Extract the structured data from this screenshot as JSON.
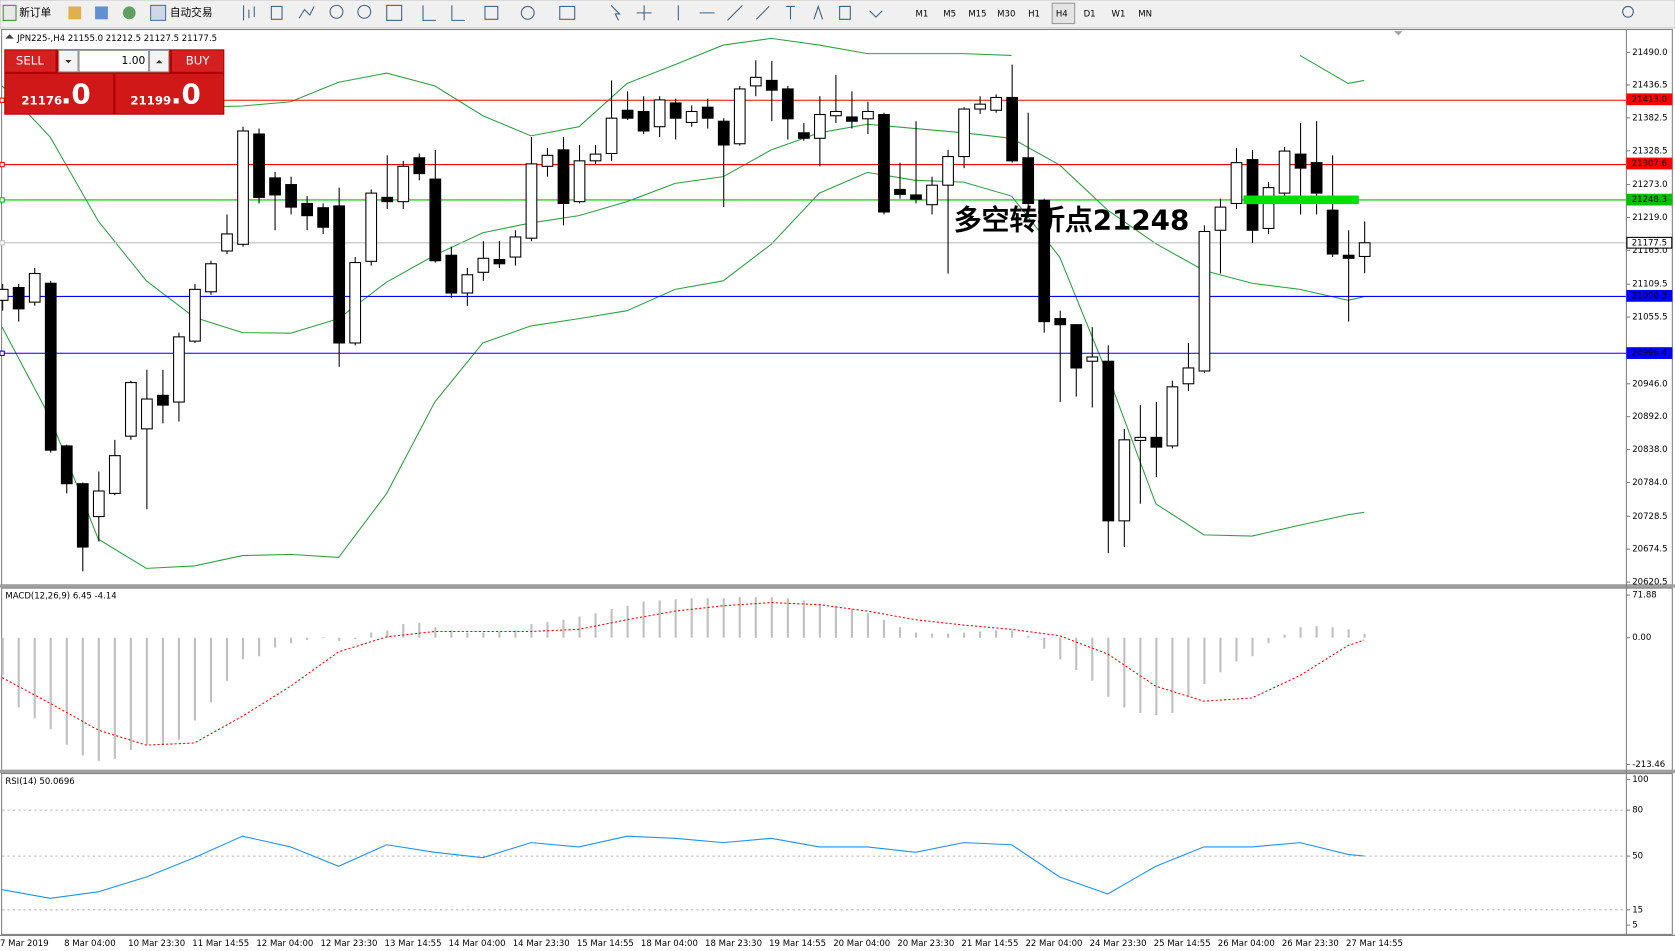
{
  "toolbar": {
    "new_order": "新订单",
    "auto_trading": "自动交易",
    "timeframes": [
      "M1",
      "M5",
      "M15",
      "M30",
      "H1",
      "H4",
      "D1",
      "W1",
      "MN"
    ]
  },
  "trade_panel": {
    "sell": "SELL",
    "buy": "BUY",
    "volume": "1.00",
    "bid": {
      "main": "21176",
      "pips": ".0"
    },
    "ask": {
      "main": "21199",
      "pips": ".0"
    }
  },
  "chart_data": [
    {
      "type": "candlestick",
      "title": "JPN225-,H4  21155.0 21212.5 21127.5 21177.5",
      "categories": [
        "7 Mar 2019",
        null,
        null,
        null,
        "8 Mar 04:00",
        null,
        null,
        null,
        "10 Mar 23:30",
        null,
        null,
        null,
        "11 Mar 14:55",
        null,
        null,
        null,
        "12 Mar 04:00",
        null,
        null,
        null,
        "12 Mar 23:30",
        null,
        null,
        null,
        "13 Mar 14:55",
        null,
        null,
        null,
        "14 Mar 04:00",
        null,
        null,
        null,
        "14 Mar 23:30",
        null,
        null,
        null,
        "15 Mar 14:55",
        null,
        null,
        null,
        "18 Mar 04:00",
        null,
        null,
        null,
        "18 Mar 23:30",
        null,
        null,
        null,
        "19 Mar 14:55",
        null,
        null,
        null,
        "20 Mar 04:00",
        null,
        null,
        null,
        "20 Mar 23:30",
        null,
        null,
        null,
        "21 Mar 14:55",
        null,
        null,
        null,
        "22 Mar 04:00",
        null,
        null,
        null,
        "24 Mar 23:30",
        null,
        null,
        null,
        "25 Mar 14:55",
        null,
        null,
        null,
        "26 Mar 04:00",
        null,
        null,
        null,
        "26 Mar 23:30",
        null,
        null,
        null,
        "27 Mar 14:55",
        null
      ],
      "open": [
        21083,
        21104,
        21080,
        21111,
        20844,
        20782,
        20728,
        20766,
        20860,
        20872,
        20927,
        20916,
        21016,
        21097,
        21164,
        21175,
        21356,
        21284,
        21273,
        21242,
        21235,
        21238,
        21013,
        21147,
        21252,
        21245,
        21317,
        21282,
        21157,
        21095,
        21129,
        21150,
        21154,
        21185,
        21303,
        21330,
        21245,
        21312,
        21324,
        21395,
        21393,
        21368,
        21407,
        21375,
        21400,
        21377,
        21340,
        21435,
        21444,
        21430,
        21358,
        21349,
        21386,
        21384,
        21381,
        21388,
        21265,
        21256,
        21240,
        21272,
        21319,
        21397,
        21395,
        21416,
        21317,
        21247,
        21053,
        21043,
        20983,
        20983,
        20721,
        20853,
        20858,
        20844,
        20946,
        20967,
        21198,
        21242,
        21314,
        21201,
        21259,
        21323,
        21309,
        21231,
        21157,
        21155
      ],
      "high": [
        21110,
        21110,
        21136,
        21115,
        20846,
        20784,
        20802,
        20854,
        20951,
        20969,
        20969,
        21030,
        21110,
        21148,
        21224,
        21368,
        21365,
        21294,
        21286,
        21254,
        21242,
        21268,
        21154,
        21265,
        21321,
        21312,
        21324,
        21330,
        21171,
        21136,
        21180,
        21180,
        21198,
        21351,
        21333,
        21351,
        21338,
        21338,
        21444,
        21426,
        21418,
        21418,
        21414,
        21403,
        21414,
        21382,
        21435,
        21477,
        21476,
        21435,
        21374,
        21418,
        21453,
        21426,
        21409,
        21391,
        21309,
        21377,
        21286,
        21330,
        21400,
        21418,
        21421,
        21470,
        21391,
        21250,
        21066,
        21044,
        21039,
        21009,
        20872,
        20911,
        20916,
        20951,
        21013,
        21206,
        21250,
        21333,
        21330,
        21277,
        21335,
        21374,
        21377,
        21321,
        21198,
        21212.5
      ],
      "low": [
        21066,
        21048,
        21074,
        20833,
        20766,
        20638,
        20687,
        20763,
        20854,
        20740,
        20881,
        20884,
        21013,
        21092,
        21159,
        21171,
        21242,
        21198,
        21224,
        21198,
        21192,
        20974,
        21009,
        21140,
        21233,
        21233,
        21280,
        21145,
        21087,
        21074,
        21115,
        21136,
        21140,
        21180,
        21286,
        21206,
        21242,
        21307,
        21312,
        21379,
        21356,
        21351,
        21347,
        21368,
        21365,
        21236,
        21337,
        21418,
        21377,
        21347,
        21345,
        21303,
        21374,
        21365,
        21356,
        21224,
        21250,
        21242,
        21224,
        21127,
        21300,
        21389,
        21391,
        21309,
        21224,
        21030,
        20916,
        20925,
        20907,
        20668,
        20678,
        20749,
        20793,
        20840,
        20934,
        20964,
        21127,
        21233,
        21177,
        21192,
        21250,
        21224,
        21224,
        21154,
        21048,
        21127.5
      ],
      "close": [
        21101,
        21069,
        21127,
        20837,
        20782,
        20678,
        20770,
        20828,
        20948,
        20921,
        20911,
        21023,
        21101,
        21143,
        21192,
        21361,
        21252,
        21256,
        21236,
        21222,
        21203,
        21013,
        21145,
        21259,
        21245,
        21303,
        21291,
        21148,
        21095,
        21125,
        21152,
        21143,
        21187,
        21307,
        21321,
        21242,
        21312,
        21323,
        21382,
        21382,
        21361,
        21412,
        21382,
        21393,
        21382,
        21338,
        21430,
        21449,
        21428,
        21381,
        21349,
        21388,
        21393,
        21377,
        21393,
        21228,
        21257,
        21249,
        21272,
        21319,
        21397,
        21405,
        21416,
        21312,
        21242,
        21048,
        21043,
        20972,
        20990,
        20721,
        20854,
        20858,
        20842,
        20941,
        20972,
        21196,
        21236,
        21309,
        21198,
        21268,
        21328,
        21300,
        21259,
        21159,
        21152,
        21177.5
      ],
      "up_color": "#ffffff",
      "down_color": "#000000",
      "bands": {
        "color": "#2ea043",
        "x": [
          0,
          3,
          6,
          9,
          12,
          15,
          18,
          21,
          24,
          27,
          30,
          33,
          36,
          39,
          42,
          45,
          48,
          51,
          54,
          57,
          60,
          63,
          66,
          69,
          72,
          75,
          78,
          81,
          84,
          85
        ],
        "upper": [
          21409,
          21404,
          21402,
          21400,
          21400,
          21402,
          21409,
          21441,
          21456,
          21435,
          21386,
          21353,
          21368,
          21439,
          21470,
          21502,
          21513,
          21502,
          21488,
          21488,
          21488,
          21485,
          null,
          null,
          null,
          null,
          null,
          21485,
          21439,
          21444
        ],
        "middle": [
          21435,
          21351,
          21213,
          21115,
          21055,
          21030,
          21029,
          21053,
          21113,
          21157,
          21194,
          21210,
          21222,
          21245,
          21275,
          21286,
          21330,
          21358,
          21372,
          21365,
          21358,
          21349,
          21305,
          21231,
          21176,
          21132,
          21111,
          21101,
          21083,
          21089
        ],
        "lower": [
          21039,
          20890,
          20691,
          20643,
          20647,
          20664,
          20666,
          20661,
          20766,
          20916,
          21013,
          21041,
          21053,
          21066,
          21101,
          21115,
          21175,
          21259,
          21293,
          21280,
          21277,
          21254,
          21154,
          20960,
          20749,
          20698,
          20696,
          20714,
          20731,
          20735
        ]
      },
      "hlines": [
        {
          "value": 21413.0,
          "label": "21413.0",
          "color": "#ff0000"
        },
        {
          "value": 21307.6,
          "label": "21307.6",
          "color": "#ff0000"
        },
        {
          "value": 21248.3,
          "label": "21248.3",
          "color": "#00c000"
        },
        {
          "value": 21177.5,
          "label": "21177.5",
          "color": "#c0c0c0"
        },
        {
          "value": 21090.3,
          "label": "21090.3",
          "color": "#0000ff"
        },
        {
          "value": 20996.4,
          "label": "20996.4",
          "color": "#0000ff"
        }
      ],
      "annotation": {
        "text": "多空转折点21248",
        "value": 21248,
        "color": "#1fc41f"
      },
      "ylim": [
        20616.8,
        21523.2
      ],
      "yticks": [
        {
          "value": 21490.0,
          "label": "21490.0"
        },
        {
          "value": 21436.5,
          "label": "21436.5"
        },
        {
          "value": 21382.5,
          "label": "21382.5"
        },
        {
          "value": 21328.5,
          "label": "21328.5"
        },
        {
          "value": 21273.0,
          "label": "21273.0"
        },
        {
          "value": 21219.0,
          "label": "21219.0"
        },
        {
          "value": 21165.0,
          "label": "21165.0"
        },
        {
          "value": 21109.5,
          "label": "21109.5"
        },
        {
          "value": 21055.5,
          "label": "21055.5"
        },
        {
          "value": 20946.0,
          "label": "20946.0"
        },
        {
          "value": 20892.0,
          "label": "20892.0"
        },
        {
          "value": 20838.0,
          "label": "20838.0"
        },
        {
          "value": 20784.0,
          "label": "20784.0"
        },
        {
          "value": 20728.5,
          "label": "20728.5"
        },
        {
          "value": 20674.5,
          "label": "20674.5"
        },
        {
          "value": 20620.5,
          "label": "20620.5"
        }
      ]
    },
    {
      "type": "macd",
      "title": "MACD(12,26,9) 6.45 -4.14",
      "values": [
        -63.6,
        -117.8,
        -135.8,
        -153.9,
        -180.3,
        -198.4,
        -207.4,
        -203.8,
        -189.4,
        -180.3,
        -180.3,
        -171.9,
        -139.4,
        -108.7,
        -72.6,
        -36.5,
        -31.2,
        -16.6,
        -9.4,
        -4.0,
        1.4,
        -5.8,
        -2.2,
        8.7,
        12.3,
        23.1,
        24.9,
        17.7,
        12.3,
        8.7,
        8.7,
        10.5,
        12.3,
        23.1,
        26.7,
        30.3,
        35.8,
        41.2,
        48.4,
        53.8,
        61.0,
        62.8,
        64.7,
        66.5,
        66.5,
        66.5,
        68.3,
        68.3,
        68.3,
        66.5,
        62.8,
        57.4,
        53.8,
        48.4,
        41.2,
        30.3,
        17.7,
        8.7,
        6.9,
        6.9,
        8.7,
        10.5,
        12.3,
        12.3,
        3.3,
        -18.4,
        -36.5,
        -54.5,
        -72.6,
        -99.7,
        -117.8,
        -126.8,
        -130.4,
        -126.8,
        -99.7,
        -78.0,
        -58.2,
        -40.1,
        -31.2,
        -9.4,
        5.1,
        17.7,
        19.5,
        17.7,
        14.1,
        6.45
      ],
      "color": "#c0c0c0",
      "signal": {
        "color": "#ff0000",
        "x": [
          0,
          3,
          6,
          9,
          12,
          15,
          18,
          21,
          24,
          27,
          30,
          33,
          36,
          39,
          42,
          45,
          48,
          51,
          54,
          57,
          60,
          63,
          66,
          69,
          72,
          75,
          78,
          81,
          84,
          85
        ],
        "values": [
          -67.2,
          -110.5,
          -155.6,
          -180.9,
          -177.3,
          -132.2,
          -81.7,
          -23.8,
          1.4,
          10.5,
          10.5,
          10.5,
          14.1,
          30.3,
          44.8,
          53.8,
          59.2,
          55.6,
          44.8,
          30.3,
          21.3,
          14.1,
          3.3,
          -27.5,
          -81.7,
          -106.9,
          -101.5,
          -63.6,
          -13.0,
          -4.14
        ]
      },
      "ylim": [
        -222.5,
        84.5
      ],
      "yticks": [
        {
          "value": 71.88,
          "label": "71.88"
        },
        {
          "value": 0,
          "label": "0.00"
        },
        {
          "value": -213.46,
          "label": "-213.46"
        }
      ]
    },
    {
      "type": "line",
      "title": "RSI(14) 50.0696",
      "x": [
        0,
        3,
        6,
        9,
        12,
        15,
        18,
        21,
        24,
        27,
        30,
        33,
        36,
        39,
        42,
        45,
        48,
        51,
        54,
        57,
        60,
        63,
        66,
        69,
        72,
        75,
        78,
        81,
        84,
        85
      ],
      "values": [
        28.1,
        22.5,
        26.7,
        36.4,
        49.0,
        63.0,
        56.0,
        43.4,
        57.4,
        52.5,
        49.0,
        58.8,
        56.0,
        63.0,
        61.6,
        58.8,
        61.6,
        56.0,
        56.0,
        52.5,
        58.8,
        57.4,
        36.4,
        25.3,
        43.4,
        56.0,
        56.0,
        58.8,
        51.1,
        50.0696
      ],
      "color": "#1e90ff",
      "levels": [
        80,
        50,
        15
      ],
      "ylim": [
        0,
        103.5
      ],
      "yticks": [
        100,
        80,
        50,
        15,
        5
      ]
    }
  ]
}
